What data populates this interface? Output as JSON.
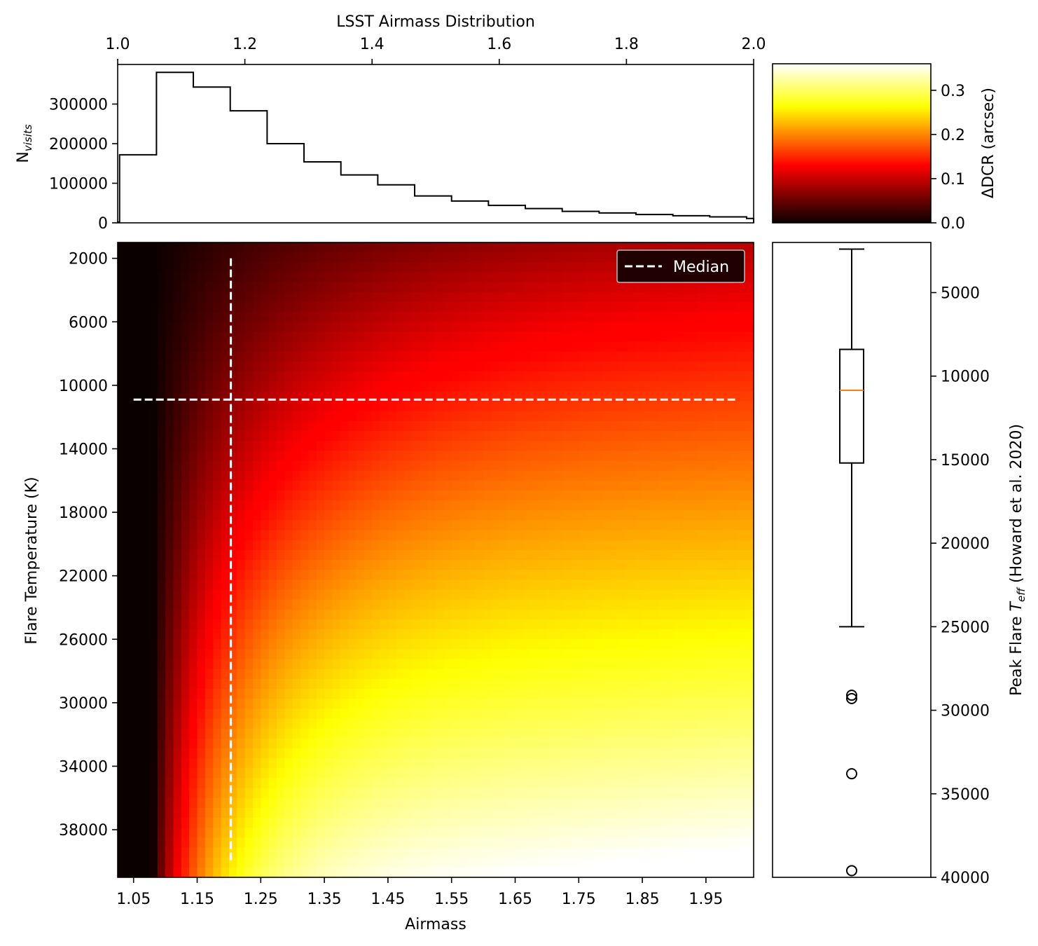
{
  "chart_data": [
    {
      "type": "histogram",
      "title": "LSST Airmass Distribution",
      "xlabel": "",
      "ylabel": "N_visits",
      "xlim": [
        1.0,
        2.0
      ],
      "ylim": [
        0,
        400000
      ],
      "x_ticks": [
        "1.0",
        "1.2",
        "1.4",
        "1.6",
        "1.8",
        "2.0"
      ],
      "y_ticks": [
        "0",
        "100000",
        "200000",
        "300000"
      ],
      "bin_edges": [
        1.0,
        1.003,
        1.061,
        1.119,
        1.177,
        1.235,
        1.293,
        1.351,
        1.409,
        1.467,
        1.525,
        1.583,
        1.641,
        1.699,
        1.757,
        1.815,
        1.873,
        1.931,
        1.989,
        2.0
      ],
      "counts": [
        2000,
        172000,
        380000,
        343000,
        283000,
        200000,
        154000,
        121000,
        96000,
        68000,
        55000,
        44000,
        36000,
        29000,
        25000,
        21000,
        18000,
        15000,
        11000
      ]
    },
    {
      "type": "heatmap",
      "xlabel": "Airmass",
      "ylabel": "Flare Temperature (K)",
      "x_ticks": [
        "1.05",
        "1.15",
        "1.25",
        "1.35",
        "1.45",
        "1.55",
        "1.65",
        "1.75",
        "1.85",
        "1.95"
      ],
      "y_ticks": [
        "2000",
        "6000",
        "10000",
        "14000",
        "18000",
        "22000",
        "26000",
        "30000",
        "34000",
        "38000"
      ],
      "xlim": [
        1.025,
        2.025
      ],
      "ylim_inverted": [
        1000,
        41000
      ],
      "value": "ΔDCR (arcsec)",
      "median_airmass": 1.203,
      "median_temperature": 10900,
      "legend": {
        "label": "Median",
        "placement": "top-right"
      }
    },
    {
      "type": "colorbar",
      "label": "ΔDCR (arcsec)",
      "range": [
        0.0,
        0.36
      ],
      "ticks": [
        "0.0",
        "0.1",
        "0.2",
        "0.3"
      ],
      "colormap": "hot"
    },
    {
      "type": "boxplot",
      "ylabel": "Peak Flare T_eff (Howard et al. 2020)",
      "ylim_inverted": [
        2000,
        40000
      ],
      "y_ticks": [
        "5000",
        "10000",
        "15000",
        "20000",
        "25000",
        "30000",
        "35000",
        "40000"
      ],
      "whisker_low": 2400,
      "q1": 8400,
      "median": 10850,
      "q3": 15200,
      "whisker_high": 25000,
      "outliers": [
        29100,
        29300,
        33800,
        39600
      ],
      "median_color": "#ff7f0e"
    }
  ]
}
